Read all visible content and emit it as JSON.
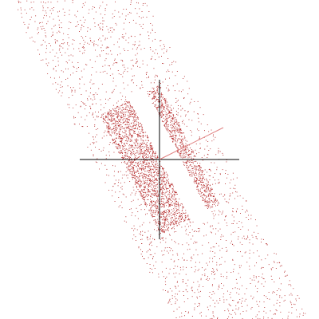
{
  "chart_data": {
    "type": "scatter",
    "title": "",
    "xlabel": "",
    "ylabel": "",
    "xlim": [
      -1.0,
      1.0
    ],
    "ylim": [
      -1.0,
      1.0
    ],
    "grid": false,
    "legend": "none",
    "axes": {
      "x_axis_extent": [
        -0.5,
        0.5
      ],
      "y_axis_extent": [
        -0.5,
        0.5
      ],
      "color": "#000000"
    },
    "point_color": "#b22222",
    "series": [
      {
        "values_description_free": true,
        "band_direction": [
          0.457,
          -0.889
        ],
        "band_normal": [
          0.889,
          0.457
        ],
        "band_half_width": 0.38,
        "band_extent": [
          -1.3,
          1.3
        ],
        "gap_center": 0.06,
        "gap_half_width": 0.06,
        "core_half_length": 0.42,
        "core_points": 4200,
        "halo_points": 3200
      }
    ],
    "reference_line": {
      "from": [
        0.0,
        0.0
      ],
      "to": [
        0.4,
        0.2
      ],
      "color": "#e08080"
    }
  }
}
